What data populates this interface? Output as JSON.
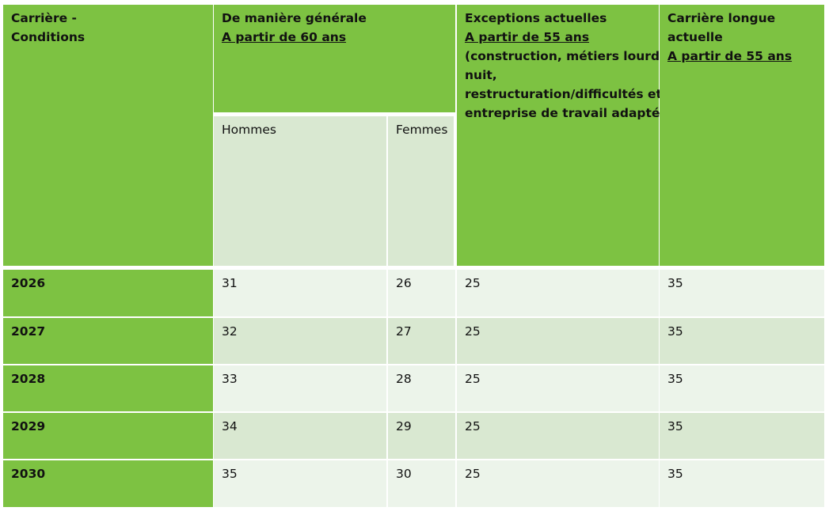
{
  "header": {
    "col1": {
      "lines": [
        "Carrière -",
        "Conditions"
      ]
    },
    "col2": {
      "title": "De manière générale",
      "subtitle": "A partir de 60 ans"
    },
    "col2_sub": {
      "hommes": "Hommes",
      "femmes": "Femmes"
    },
    "col3": {
      "title": "Exceptions actuelles",
      "subtitle": "A partir de 55 ans",
      "details": [
        "(construction, métiers lourds,",
        "nuit,",
        "restructuration/difficultés et",
        "entreprise de travail adapté)"
      ]
    },
    "col4": {
      "lines": [
        "Carrière longue",
        "actuelle"
      ],
      "subtitle": "A partir de 55 ans"
    }
  },
  "rows": [
    {
      "year": "2026",
      "hommes": "31",
      "femmes": "26",
      "exceptions": "25",
      "longue": "35"
    },
    {
      "year": "2027",
      "hommes": "32",
      "femmes": "27",
      "exceptions": "25",
      "longue": "35"
    },
    {
      "year": "2028",
      "hommes": "33",
      "femmes": "28",
      "exceptions": "25",
      "longue": "35"
    },
    {
      "year": "2029",
      "hommes": "34",
      "femmes": "29",
      "exceptions": "25",
      "longue": "35"
    },
    {
      "year": "2030",
      "hommes": "35",
      "femmes": "30",
      "exceptions": "25",
      "longue": "35"
    }
  ],
  "colors": {
    "header_green": "#7dc242",
    "light_green": "#d9e8d1",
    "very_light_green": "#ecf4ea"
  }
}
